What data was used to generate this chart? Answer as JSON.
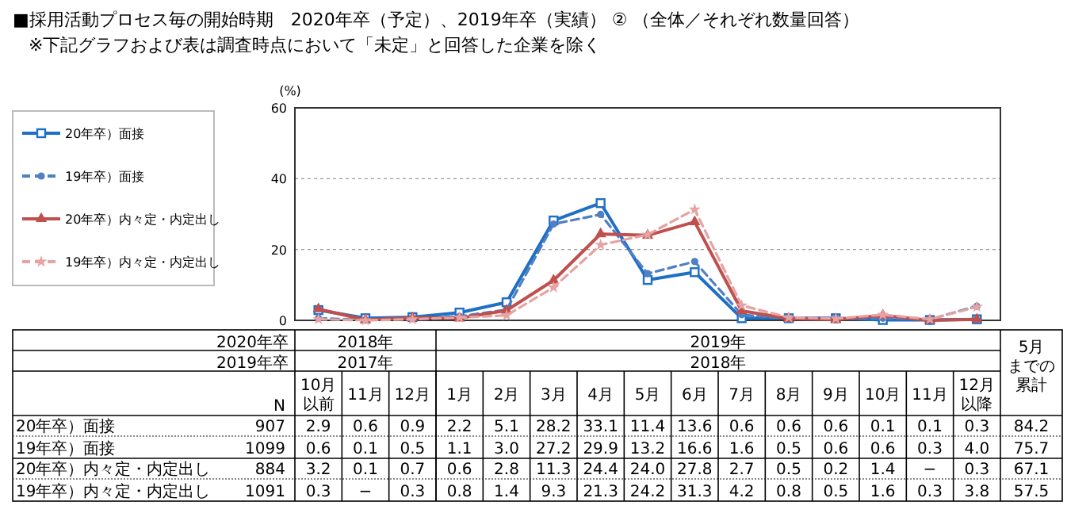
{
  "chart_data": {
    "type": "line",
    "title": "■採用活動プロセス毎の開始時期　2020年卒（予定）、2019年卒（実績）  ②  （全体／それぞれ数量回答）",
    "subtitle": "※下記グラフおよび表は調査時点において「未定」と回答した企業を除く",
    "ylabel": "(%)",
    "categories": [
      "10月以前",
      "11月",
      "12月",
      "1月",
      "2月",
      "3月",
      "4月",
      "5月",
      "6月",
      "7月",
      "8月",
      "9月",
      "10月",
      "11月",
      "12月以降"
    ],
    "ylim": [
      0,
      60
    ],
    "yticks": [
      0,
      20,
      40,
      60
    ],
    "grid": "y",
    "legend": "left",
    "series": [
      {
        "name": "20年卒）面接",
        "color": "#1f6fc5",
        "marker": "square",
        "line_style": "solid",
        "values": [
          2.9,
          0.6,
          0.9,
          2.2,
          5.1,
          28.2,
          33.1,
          11.4,
          13.6,
          0.6,
          0.6,
          0.6,
          0.1,
          0.1,
          0.3
        ],
        "value_labels": [
          "2.9",
          "0.6",
          "0.9",
          "2.2",
          "5.1",
          "28.2",
          "33.1",
          "11.4",
          "13.6",
          "0.6",
          "0.6",
          "0.6",
          "0.1",
          "0.1",
          "0.3"
        ]
      },
      {
        "name": "19年卒）面接",
        "color": "#4f7fc4",
        "marker": "circle",
        "line_style": "dashed",
        "values": [
          0.6,
          0.1,
          0.5,
          1.1,
          3.0,
          27.2,
          29.9,
          13.2,
          16.6,
          1.6,
          0.5,
          0.6,
          0.6,
          0.3,
          4.0
        ],
        "value_labels": [
          "0.6",
          "0.1",
          "0.5",
          "1.1",
          "3.0",
          "27.2",
          "29.9",
          "13.2",
          "16.6",
          "1.6",
          "0.5",
          "0.6",
          "0.6",
          "0.3",
          "4.0"
        ]
      },
      {
        "name": "20年卒）内々定・内定出し",
        "color": "#c0504d",
        "marker": "triangle",
        "line_style": "solid",
        "values": [
          3.2,
          0.1,
          0.7,
          0.6,
          2.8,
          11.3,
          24.4,
          24.0,
          27.8,
          2.7,
          0.5,
          0.2,
          1.4,
          0,
          0.3
        ],
        "value_labels": [
          "3.2",
          "0.1",
          "0.7",
          "0.6",
          "2.8",
          "11.3",
          "24.4",
          "24.0",
          "27.8",
          "2.7",
          "0.5",
          "0.2",
          "1.4",
          "−",
          "0.3"
        ]
      },
      {
        "name": "19年卒）内々定・内定出し",
        "color": "#e6a3a3",
        "marker": "star",
        "line_style": "dashed",
        "values": [
          0.3,
          0,
          0.3,
          0.8,
          1.4,
          9.3,
          21.3,
          24.2,
          31.3,
          4.2,
          0.8,
          0.5,
          1.6,
          0.3,
          3.8
        ],
        "value_labels": [
          "0.3",
          "−",
          "0.3",
          "0.8",
          "1.4",
          "9.3",
          "21.3",
          "24.2",
          "31.3",
          "4.2",
          "0.8",
          "0.5",
          "1.6",
          "0.3",
          "3.8"
        ]
      }
    ],
    "annotations": [
      "2020年卒",
      "2019年卒",
      "2018年",
      "2017年",
      "2019年",
      "2018年",
      "N",
      "907",
      "1099",
      "884",
      "1091",
      "5月までの累計",
      "84.2",
      "75.7",
      "67.1",
      "57.5"
    ]
  }
}
